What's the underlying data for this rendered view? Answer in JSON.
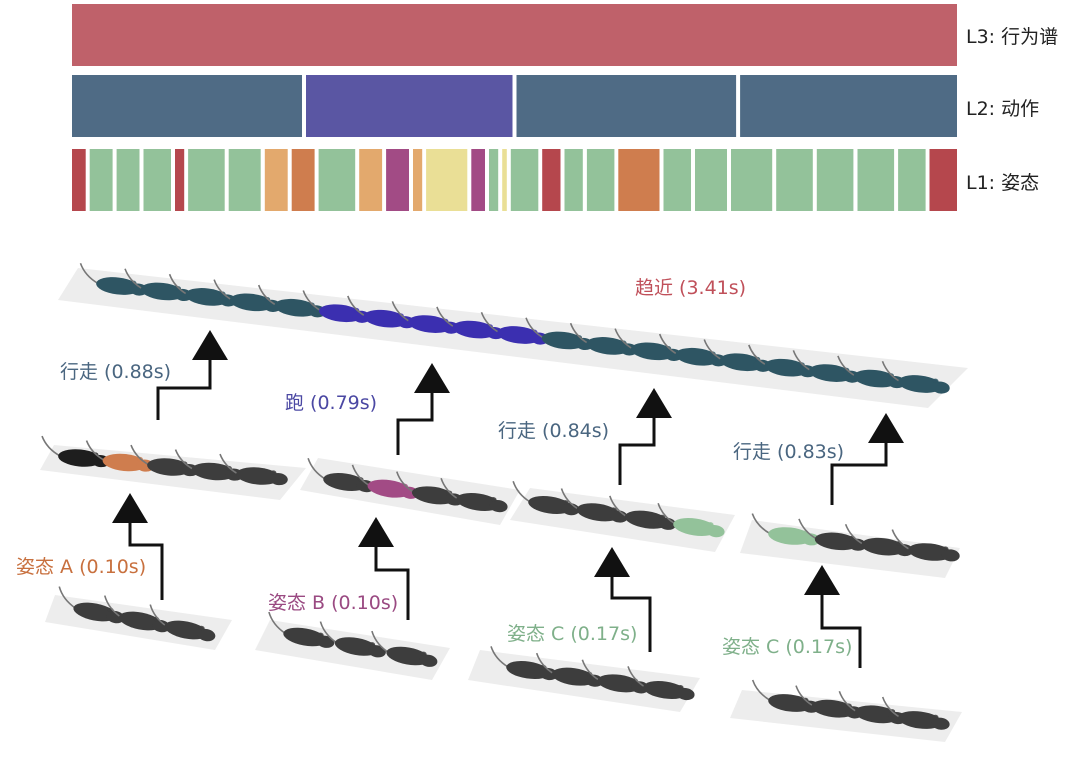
{
  "levels": {
    "l3": "L3: 行为谱",
    "l2": "L2: 动作",
    "l1": "L1: 姿态"
  },
  "colors": {
    "l3": "#bf616a",
    "walk": "#4f6b85",
    "run": "#5a56a3",
    "posture_green": "#93c29a",
    "posture_red": "#b5474d",
    "posture_orange": "#cf7d4e",
    "posture_amber": "#e3a96d",
    "posture_magenta": "#a24b85",
    "posture_yellow": "#eadf96",
    "mouse_gray": "#3d3d3d",
    "mouse_teal": "#2e5563",
    "mouse_blue": "#3b2fb0"
  },
  "l1_segments": [
    {
      "w": 3,
      "c": "posture_red"
    },
    {
      "w": 5,
      "c": "posture_green"
    },
    {
      "w": 5,
      "c": "posture_green"
    },
    {
      "w": 6,
      "c": "posture_green"
    },
    {
      "w": 2,
      "c": "posture_red"
    },
    {
      "w": 8,
      "c": "posture_green"
    },
    {
      "w": 7,
      "c": "posture_green"
    },
    {
      "w": 5,
      "c": "posture_amber"
    },
    {
      "w": 5,
      "c": "posture_orange"
    },
    {
      "w": 8,
      "c": "posture_green"
    },
    {
      "w": 5,
      "c": "posture_amber"
    },
    {
      "w": 5,
      "c": "posture_magenta"
    },
    {
      "w": 2,
      "c": "posture_amber"
    },
    {
      "w": 9,
      "c": "posture_yellow"
    },
    {
      "w": 3,
      "c": "posture_magenta"
    },
    {
      "w": 2,
      "c": "posture_green"
    },
    {
      "w": 1,
      "c": "posture_yellow"
    },
    {
      "w": 6,
      "c": "posture_green"
    },
    {
      "w": 4,
      "c": "posture_red"
    },
    {
      "w": 4,
      "c": "posture_green"
    },
    {
      "w": 6,
      "c": "posture_green"
    },
    {
      "w": 9,
      "c": "posture_orange"
    },
    {
      "w": 6,
      "c": "posture_green"
    },
    {
      "w": 7,
      "c": "posture_green"
    },
    {
      "w": 9,
      "c": "posture_green"
    },
    {
      "w": 8,
      "c": "posture_green"
    },
    {
      "w": 8,
      "c": "posture_green"
    },
    {
      "w": 8,
      "c": "posture_green"
    },
    {
      "w": 6,
      "c": "posture_green"
    },
    {
      "w": 6,
      "c": "posture_red"
    }
  ],
  "l2_segments": [
    {
      "w": 0.88,
      "c": "walk"
    },
    {
      "w": 0.79,
      "c": "run"
    },
    {
      "w": 0.84,
      "c": "walk"
    },
    {
      "w": 0.83,
      "c": "walk"
    }
  ],
  "labels": {
    "approach": "趋近 (3.41s)",
    "walk1": "行走 (0.88s)",
    "run": "跑 (0.79s)",
    "walk2": "行走 (0.84s)",
    "walk3": "行走 (0.83s)",
    "postureA": "姿态 A (0.10s)",
    "postureB": "姿态 B (0.10s)",
    "postureC1": "姿态 C (0.17s)",
    "postureC2": "姿态 C (0.17s)"
  },
  "label_colors": {
    "approach": "#c0505a",
    "walk": "#4a6680",
    "run": "#4b48a3",
    "postureA": "#c8703e",
    "postureB": "#9a4a82",
    "postureC": "#7fb08a"
  }
}
